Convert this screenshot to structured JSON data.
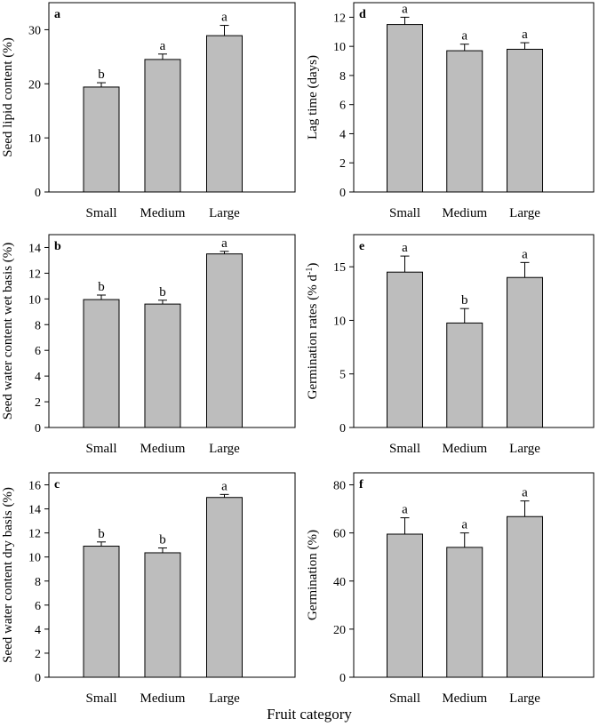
{
  "figure": {
    "xlabel": "Fruit category"
  },
  "chart_data": [
    {
      "type": "bar",
      "panel": "a",
      "categories": [
        "Small",
        "Medium",
        "Large"
      ],
      "values": [
        19.4,
        24.5,
        28.9
      ],
      "errors": [
        0.8,
        1.0,
        1.9
      ],
      "significance": [
        "b",
        "a",
        "a"
      ],
      "ylabel": "Seed lipid content (%)",
      "ylim": [
        0,
        35
      ],
      "yticks": [
        0,
        10,
        20,
        30
      ]
    },
    {
      "type": "bar",
      "panel": "b",
      "categories": [
        "Small",
        "Medium",
        "Large"
      ],
      "values": [
        9.95,
        9.6,
        13.5
      ],
      "errors": [
        0.35,
        0.3,
        0.2
      ],
      "significance": [
        "b",
        "b",
        "a"
      ],
      "ylabel": "Seed water content wet basis (%)",
      "ylim": [
        0,
        15
      ],
      "yticks": [
        0,
        2,
        4,
        6,
        8,
        10,
        12,
        14
      ]
    },
    {
      "type": "bar",
      "panel": "c",
      "categories": [
        "Small",
        "Medium",
        "Large"
      ],
      "values": [
        10.9,
        10.35,
        14.95
      ],
      "errors": [
        0.35,
        0.4,
        0.25
      ],
      "significance": [
        "b",
        "b",
        "a"
      ],
      "ylabel": "Seed water content dry basis (%)",
      "ylim": [
        0,
        17
      ],
      "yticks": [
        0,
        2,
        4,
        6,
        8,
        10,
        12,
        14,
        16
      ]
    },
    {
      "type": "bar",
      "panel": "d",
      "categories": [
        "Small",
        "Medium",
        "Large"
      ],
      "values": [
        11.5,
        9.7,
        9.8
      ],
      "errors": [
        0.5,
        0.45,
        0.45
      ],
      "significance": [
        "a",
        "a",
        "a"
      ],
      "ylabel": "Lag time (days)",
      "ylim": [
        0,
        13
      ],
      "yticks": [
        0,
        2,
        4,
        6,
        8,
        10,
        12
      ]
    },
    {
      "type": "bar",
      "panel": "e",
      "categories": [
        "Small",
        "Medium",
        "Large"
      ],
      "values": [
        14.5,
        9.75,
        14.0
      ],
      "errors": [
        1.5,
        1.35,
        1.4
      ],
      "significance": [
        "a",
        "b",
        "a"
      ],
      "ylabel_main": "Germination rates (% d",
      "ylabel_sup": "-1",
      "ylabel_end": ")",
      "ylim": [
        0,
        18
      ],
      "yticks": [
        0,
        5,
        10,
        15
      ]
    },
    {
      "type": "bar",
      "panel": "f",
      "categories": [
        "Small",
        "Medium",
        "Large"
      ],
      "values": [
        59.5,
        54.0,
        66.8
      ],
      "errors": [
        6.8,
        6.0,
        6.5
      ],
      "significance": [
        "a",
        "a",
        "a"
      ],
      "ylabel": "Germination (%)",
      "ylim": [
        0,
        85
      ],
      "yticks": [
        0,
        20,
        40,
        60,
        80
      ]
    }
  ]
}
